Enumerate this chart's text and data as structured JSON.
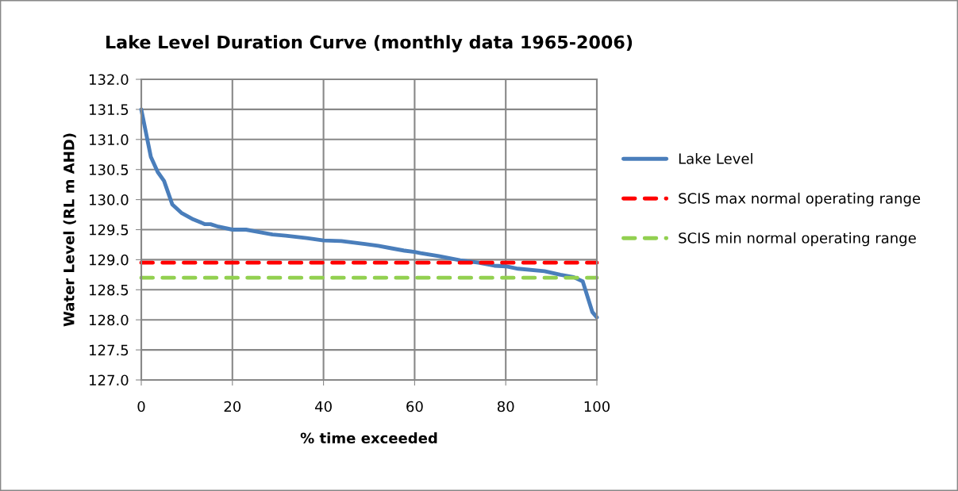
{
  "chart_data": {
    "type": "line",
    "title": "Lake Level Duration Curve (monthly data 1965-2006)",
    "xlabel": "% time exceeded",
    "ylabel": "Water Level (RL m AHD)",
    "xlim": [
      0,
      100
    ],
    "xticks": [
      0,
      20,
      40,
      60,
      80,
      100
    ],
    "ylim": [
      127.0,
      132.0
    ],
    "yticks": [
      {
        "value": 127.0,
        "label": "127.0"
      },
      {
        "value": 127.5,
        "label": "127.5"
      },
      {
        "value": 128.0,
        "label": "128.0"
      },
      {
        "value": 128.5,
        "label": "128.5"
      },
      {
        "value": 129.0,
        "label": "129.0"
      },
      {
        "value": 129.5,
        "label": "129.5"
      },
      {
        "value": 130.0,
        "label": "130.0"
      },
      {
        "value": 130.5,
        "label": "130.5"
      },
      {
        "value": 131.0,
        "label": "131.0"
      },
      {
        "value": 131.5,
        "label": "131.5"
      },
      {
        "value": 132.0,
        "label": "132.0"
      }
    ],
    "grid": true,
    "legend": "right",
    "marker": "none",
    "series": [
      {
        "name": "Lake Level",
        "color": "#4a7ebb",
        "line_style": "solid",
        "x": [
          0,
          2.1,
          3.6,
          5.0,
          6.8,
          8.8,
          11.4,
          14.0,
          15.2,
          16.9,
          20,
          23,
          25.9,
          28.8,
          31.7,
          36.3,
          40,
          43.9,
          49.1,
          52,
          54.9,
          57.8,
          60,
          61.3,
          65.3,
          70,
          74,
          77.5,
          80,
          82.7,
          88.5,
          92,
          94.9,
          96.9,
          99,
          100
        ],
        "values": [
          131.5,
          130.71,
          130.46,
          130.31,
          129.92,
          129.78,
          129.67,
          129.59,
          129.59,
          129.55,
          129.5,
          129.5,
          129.46,
          129.42,
          129.4,
          129.36,
          129.32,
          129.31,
          129.26,
          129.23,
          129.19,
          129.15,
          129.13,
          129.11,
          129.06,
          128.99,
          128.95,
          128.9,
          128.89,
          128.85,
          128.81,
          128.75,
          128.71,
          128.64,
          128.13,
          128.04
        ]
      },
      {
        "name": "SCIS max normal operating range",
        "color": "#ff0000",
        "line_style": "dashed",
        "x": [
          0,
          100
        ],
        "values": [
          128.95,
          128.95
        ]
      },
      {
        "name": "SCIS min normal operating range",
        "color": "#92d050",
        "line_style": "dashed",
        "x": [
          0,
          100
        ],
        "values": [
          128.7,
          128.7
        ]
      }
    ]
  }
}
